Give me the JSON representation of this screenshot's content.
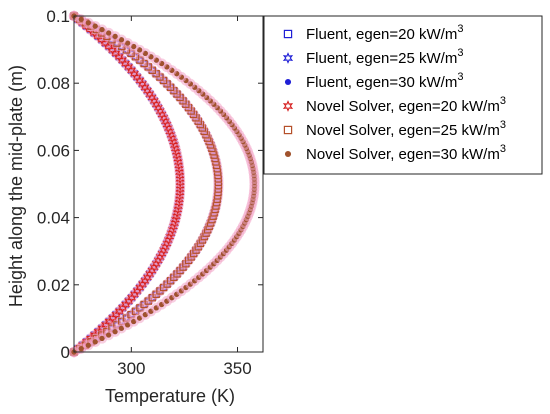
{
  "chart_data": {
    "type": "scatter",
    "title": "",
    "xlabel": "Temperature (K)",
    "ylabel": "Height along the mid-plate (m)",
    "xlim": [
      273,
      362
    ],
    "ylim": [
      0,
      0.1
    ],
    "xticks": [
      300,
      350
    ],
    "yticks": [
      0,
      0.02,
      0.04,
      0.06,
      0.08,
      0.1
    ],
    "xtick_labels": [
      "300",
      "350"
    ],
    "ytick_labels": [
      "0",
      "0.02",
      "0.04",
      "0.06",
      "0.08",
      "0.1"
    ],
    "grid": false,
    "legend_position": "outside-right",
    "profile_shape": "symmetric-parabolic about y=0.05",
    "wall_temperature": 273,
    "series": [
      {
        "name": "Fluent, egen=20 kW/m3",
        "egen_kW_m3": 20,
        "peak_temperature": 323,
        "marker": "square",
        "color": "#1f1fd6"
      },
      {
        "name": "Fluent, egen=25 kW/m3",
        "egen_kW_m3": 25,
        "peak_temperature": 341,
        "marker": "hexagram",
        "color": "#1f1fd6"
      },
      {
        "name": "Fluent, egen=30 kW/m3",
        "egen_kW_m3": 30,
        "peak_temperature": 358,
        "marker": "dot",
        "color": "#1f1fd6"
      },
      {
        "name": "Novel Solver, egen=20 kW/m3",
        "egen_kW_m3": 20,
        "peak_temperature": 323,
        "marker": "hexagram",
        "color": "#d62020"
      },
      {
        "name": "Novel Solver, egen=25 kW/m3",
        "egen_kW_m3": 25,
        "peak_temperature": 341,
        "marker": "square",
        "color": "#b5502a"
      },
      {
        "name": "Novel Solver, egen=30 kW/m3",
        "egen_kW_m3": 30,
        "peak_temperature": 358,
        "marker": "dot",
        "color": "#a0522d"
      }
    ],
    "points_per_series": 100,
    "legend": {
      "entries": [
        {
          "base": "Fluent, egen=20 kW/m",
          "sup": "3"
        },
        {
          "base": "Fluent, egen=25 kW/m",
          "sup": "3"
        },
        {
          "base": "Fluent, egen=30 kW/m",
          "sup": "3"
        },
        {
          "base": "Novel Solver, egen=20 kW/m",
          "sup": "3"
        },
        {
          "base": "Novel Solver, egen=25 kW/m",
          "sup": "3"
        },
        {
          "base": "Novel Solver, egen=30 kW/m",
          "sup": "3"
        }
      ]
    }
  }
}
